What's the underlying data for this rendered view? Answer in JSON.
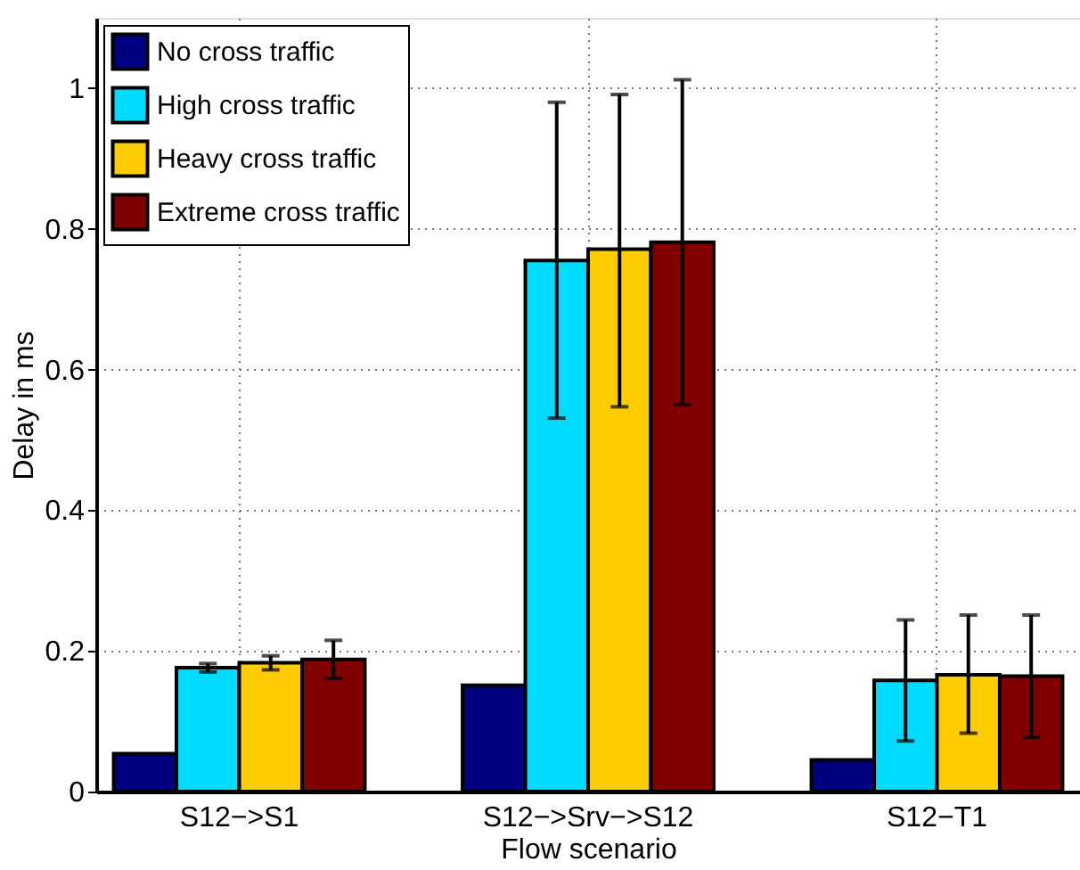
{
  "chart_data": {
    "type": "bar",
    "xlabel": "Flow scenario",
    "ylabel": "Delay in ms",
    "categories": [
      "S12−>S1",
      "S12−>Srv−>S12",
      "S12−T1"
    ],
    "series": [
      {
        "name": "No cross traffic",
        "color": "#000080",
        "values": [
          0.054,
          0.151,
          0.045
        ]
      },
      {
        "name": "High cross traffic",
        "color": "#00dcff",
        "values": [
          0.176,
          0.755,
          0.158
        ],
        "errors": [
          0.006,
          [
            0.531,
            0.98
          ],
          [
            0.072,
            0.244
          ]
        ]
      },
      {
        "name": "Heavy cross traffic",
        "color": "#ffcc00",
        "values": [
          0.183,
          0.771,
          0.166
        ],
        "errors": [
          0.01,
          [
            0.547,
            0.991
          ],
          [
            0.083,
            0.251
          ]
        ]
      },
      {
        "name": "Extreme cross traffic",
        "color": "#800000",
        "values": [
          0.188,
          0.781,
          0.164
        ],
        "errors": [
          0.027,
          [
            0.55,
            1.012
          ],
          [
            0.077,
            0.251
          ]
        ]
      }
    ],
    "ylim": [
      0,
      1.1
    ],
    "yticks": [
      0,
      0.2,
      0.4,
      0.6,
      0.8,
      1
    ],
    "grid": true,
    "legend": "top left"
  }
}
